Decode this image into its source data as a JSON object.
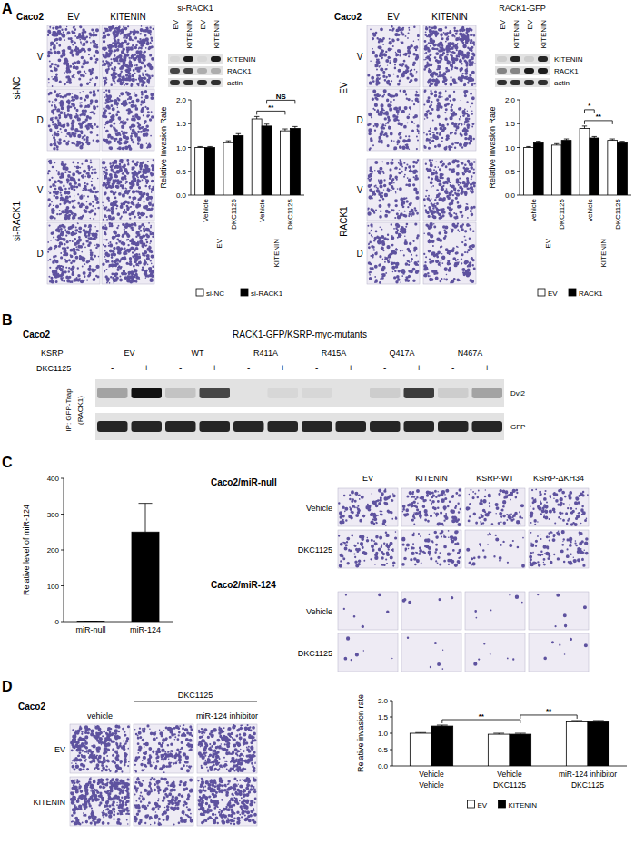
{
  "chart_data": [
    {
      "type": "bar",
      "categories": [
        "Vehicle",
        "DKC1125",
        "Vehicle",
        "DKC1125"
      ],
      "groups": [
        "EV",
        "KITENIN"
      ],
      "y_label": "Relative Invasion Rate",
      "ylim": [
        0,
        2
      ],
      "yticks": [
        {
          "value": 0,
          "label": "0.0"
        },
        {
          "value": 0.5,
          "label": "0.5"
        },
        {
          "value": 1,
          "label": "1.0"
        },
        {
          "value": 1.5,
          "label": "1.5"
        },
        {
          "value": 2,
          "label": "2.0"
        }
      ],
      "series": [
        {
          "name": "si-NC",
          "color": "#ffffff",
          "values": [
            1.0,
            1.1,
            1.6,
            1.35
          ],
          "errors": [
            0.02,
            0.04,
            0.05,
            0.04
          ]
        },
        {
          "name": "si-RACK1",
          "color": "#000000",
          "values": [
            1.0,
            1.25,
            1.45,
            1.4
          ],
          "errors": [
            0.02,
            0.04,
            0.04,
            0.04
          ]
        }
      ],
      "annotations": [
        {
          "text": "**",
          "bars": [
            [
              2,
              0
            ],
            [
              3,
              0
            ]
          ]
        },
        {
          "text": "NS",
          "bars": [
            [
              2,
              1
            ],
            [
              3,
              1
            ]
          ]
        }
      ],
      "legend": "bottom"
    },
    {
      "type": "bar",
      "categories": [
        "vehicle",
        "DKC1125",
        "vehicle",
        "DKC1125"
      ],
      "groups": [
        "EV",
        "KITENIN"
      ],
      "y_label": "Relative Invasion Rate",
      "ylim": [
        0,
        2
      ],
      "yticks": [
        {
          "value": 0,
          "label": "0.0"
        },
        {
          "value": 0.5,
          "label": "0.5"
        },
        {
          "value": 1,
          "label": "1.0"
        },
        {
          "value": 1.5,
          "label": "1.5"
        },
        {
          "value": 2,
          "label": "2.0"
        }
      ],
      "series": [
        {
          "name": "EV",
          "color": "#ffffff",
          "values": [
            1.0,
            1.05,
            1.4,
            1.15
          ],
          "errors": [
            0.02,
            0.03,
            0.05,
            0.03
          ]
        },
        {
          "name": "RACK1",
          "color": "#000000",
          "values": [
            1.1,
            1.15,
            1.2,
            1.1
          ],
          "errors": [
            0.03,
            0.03,
            0.03,
            0.03
          ]
        }
      ],
      "annotations": [
        {
          "text": "**",
          "bars": [
            [
              2,
              0
            ],
            [
              3,
              0
            ]
          ]
        },
        {
          "text": "*",
          "bars": [
            [
              2,
              0
            ],
            [
              2,
              1
            ]
          ]
        }
      ],
      "legend": "bottom"
    },
    {
      "type": "bar",
      "categories": [
        "miR-null",
        "miR-124"
      ],
      "y_label": "Relative level of miR-124",
      "ylim": [
        0,
        400
      ],
      "yticks": [
        0,
        100,
        200,
        300,
        400
      ],
      "values": [
        1,
        250
      ],
      "errors": [
        0,
        80
      ],
      "color": "#000000"
    },
    {
      "type": "bar",
      "categories": [
        "Vehicle",
        "Vehicle",
        "miR-124 inhibitor"
      ],
      "categories_2": [
        "Vehicle",
        "DKC1125",
        "DKC1125"
      ],
      "y_label": "Relative invasion rate",
      "ylim": [
        0,
        2
      ],
      "yticks": [
        {
          "value": 0,
          "label": "0.0"
        },
        {
          "value": 0.5,
          "label": "0.5"
        },
        {
          "value": 1,
          "label": "1.0"
        },
        {
          "value": 1.5,
          "label": "1.5"
        },
        {
          "value": 2,
          "label": "2.0"
        }
      ],
      "series": [
        {
          "name": "EV",
          "color": "#ffffff",
          "values": [
            1.0,
            0.97,
            1.35
          ],
          "errors": [
            0.02,
            0.03,
            0.04
          ]
        },
        {
          "name": "KITENIN",
          "color": "#000000",
          "values": [
            1.22,
            0.97,
            1.35
          ],
          "errors": [
            0.03,
            0.03,
            0.04
          ]
        }
      ],
      "annotations": [
        {
          "text": "**",
          "bars": [
            [
              0,
              1
            ],
            [
              1,
              1
            ]
          ]
        },
        {
          "text": "**",
          "bars": [
            [
              1,
              1
            ],
            [
              2,
              0
            ]
          ]
        }
      ],
      "legend": "bottom"
    }
  ],
  "figure": {
    "A": {
      "label": "A",
      "left": {
        "cell_line": "Caco2",
        "columns": [
          "EV",
          "KITENIN"
        ],
        "row_groups": [
          {
            "label": "si-NC",
            "rows": [
              "V",
              "D"
            ]
          },
          {
            "label": "si-RACK1",
            "rows": [
              "V",
              "D"
            ]
          }
        ],
        "density": [
          [
            0.55,
            0.95
          ],
          [
            0.55,
            0.6
          ],
          [
            0.55,
            0.8
          ],
          [
            0.6,
            0.8
          ]
        ],
        "blot": {
          "title": "si-RACK1",
          "lanes": [
            "EV",
            "KITENIN",
            "EV",
            "KITENIN"
          ],
          "rows": [
            {
              "label": "KITENIN",
              "intensity": [
                0.05,
                0.95,
                0.05,
                0.95
              ]
            },
            {
              "label": "RACK1",
              "intensity": [
                0.75,
                0.75,
                0.25,
                0.25
              ]
            },
            {
              "label": "actin",
              "intensity": [
                0.85,
                0.85,
                0.85,
                0.85
              ]
            }
          ]
        }
      },
      "right": {
        "cell_line": "Caco2",
        "columns": [
          "EV",
          "KITENIN"
        ],
        "row_groups": [
          {
            "label": "EV",
            "rows": [
              "V",
              "D"
            ]
          },
          {
            "label": "RACK1",
            "rows": [
              "V",
              "D"
            ]
          }
        ],
        "density": [
          [
            0.45,
            0.85
          ],
          [
            0.4,
            0.45
          ],
          [
            0.45,
            0.6
          ],
          [
            0.45,
            0.4
          ]
        ],
        "blot": {
          "title": "RACK1-GFP",
          "lanes": [
            "EV",
            "KITENIN",
            "EV",
            "KITENIN"
          ],
          "rows": [
            {
              "label": "KITENIN",
              "intensity": [
                0.1,
                0.9,
                0.1,
                0.9
              ]
            },
            {
              "label": "RACK1",
              "intensity": [
                0.45,
                0.45,
                0.95,
                0.95
              ]
            },
            {
              "label": "actin",
              "intensity": [
                0.85,
                0.85,
                0.85,
                0.85
              ]
            }
          ]
        }
      }
    },
    "B": {
      "label": "B",
      "cell_line": "Caco2",
      "title": "RACK1-GFP/KSRP-myc-mutants",
      "row_label": "KSRP",
      "constructs": [
        "EV",
        "WT",
        "R411A",
        "R415A",
        "Q417A",
        "N467A"
      ],
      "treatment_label": "DKC1125",
      "treatment_states": [
        "-",
        "+"
      ],
      "ip_label": "IP: GFP-Trap",
      "ip_sub": "(RACK1)",
      "rows": [
        {
          "label": "Dvl2",
          "intensity": [
            0.3,
            1.0,
            0.15,
            0.75,
            0.0,
            0.05,
            0.05,
            0.0,
            0.1,
            0.8,
            0.1,
            0.3
          ]
        },
        {
          "label": "GFP",
          "intensity": [
            0.9,
            0.9,
            0.9,
            0.9,
            0.9,
            0.9,
            0.9,
            0.9,
            0.9,
            0.9,
            0.9,
            0.9
          ]
        }
      ]
    },
    "C": {
      "label": "C",
      "columns": [
        "EV",
        "KITENIN",
        "KSRP-WT",
        "KSRP-ΔKH34"
      ],
      "row_groups": [
        {
          "label": "Caco2/miR-null",
          "rows": [
            "Vehicle",
            "DKC1125"
          ]
        },
        {
          "label": "Caco2/miR-124",
          "rows": [
            "Vehicle",
            "DKC1125"
          ]
        }
      ],
      "density": [
        [
          0.35,
          0.4,
          0.35,
          0.4
        ],
        [
          0.3,
          0.3,
          0.1,
          0.35
        ],
        [
          0.02,
          0.02,
          0.02,
          0.02
        ],
        [
          0.02,
          0.02,
          0.02,
          0.02
        ]
      ]
    },
    "D": {
      "label": "D",
      "cell_line": "Caco2",
      "columns": [
        "vehicle",
        null,
        "miR-124 inhibitor"
      ],
      "column_group": "DKC1125",
      "rows": [
        "EV",
        "KITENIN"
      ],
      "density": [
        [
          0.75,
          0.55,
          0.8
        ],
        [
          0.85,
          0.55,
          0.8
        ]
      ]
    }
  }
}
